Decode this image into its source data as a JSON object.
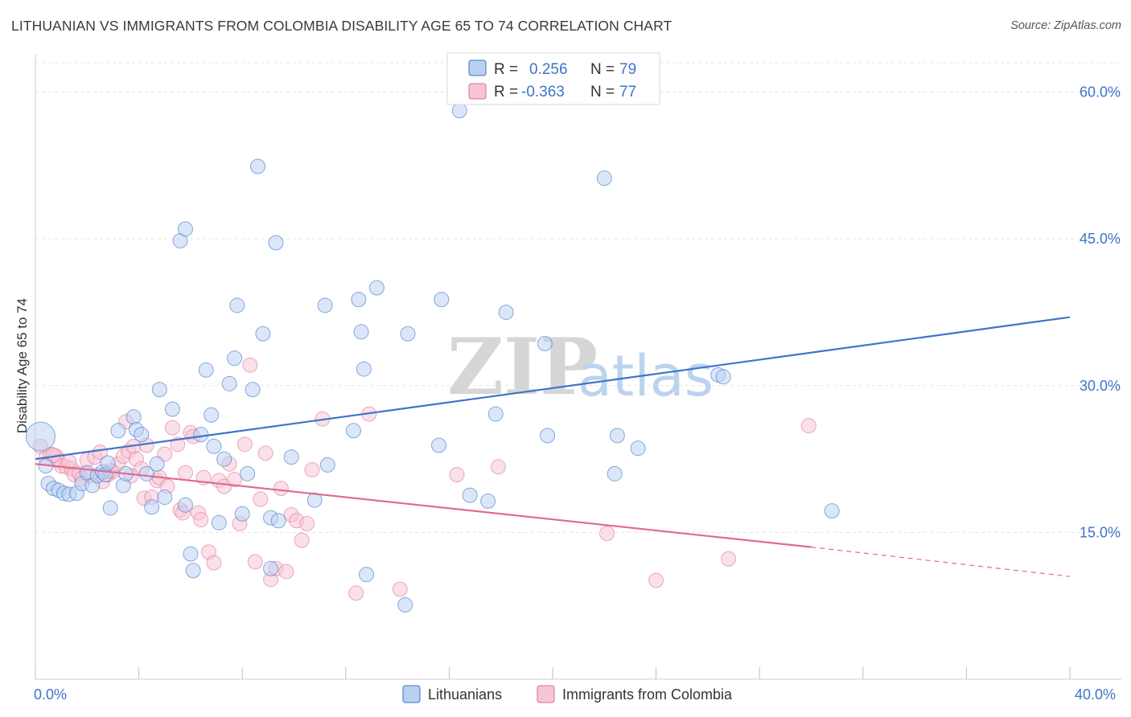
{
  "header": {
    "title": "LITHUANIAN VS IMMIGRANTS FROM COLOMBIA DISABILITY AGE 65 TO 74 CORRELATION CHART",
    "source": "Source: ZipAtlas.com"
  },
  "watermark": {
    "zip": "ZIP",
    "atlas": "atlas"
  },
  "chart_data": {
    "type": "scatter",
    "ylabel": "Disability Age 65 to 74",
    "xlim": [
      0,
      40
    ],
    "ylim": [
      0,
      63
    ],
    "x_tick_labels": [
      "0.0%",
      "40.0%"
    ],
    "y_ticks": [
      15,
      30,
      45,
      60
    ],
    "y_tick_labels": [
      "15.0%",
      "30.0%",
      "45.0%",
      "60.0%"
    ],
    "colors": {
      "lithuanians": "#3e74c9",
      "colombia": "#e0688f",
      "lith_fill": "#b8d0f2",
      "col_fill": "#f6c6d6"
    },
    "legend": {
      "r_label": "R =",
      "n_label": "N =",
      "entries": [
        {
          "r": "0.256",
          "n": "79"
        },
        {
          "r": "-0.363",
          "n": "77"
        }
      ]
    },
    "series": [
      {
        "name": "Lithuanians",
        "trend": {
          "x0": 0,
          "y0": 22.5,
          "x1": 40,
          "y1": 37.0
        },
        "points": [
          [
            0.2,
            24.8
          ],
          [
            0.4,
            21.8
          ],
          [
            0.5,
            20.0
          ],
          [
            0.7,
            19.5
          ],
          [
            0.9,
            19.3
          ],
          [
            1.1,
            19.0
          ],
          [
            1.3,
            18.9
          ],
          [
            1.6,
            19.0
          ],
          [
            1.8,
            20.0
          ],
          [
            2.0,
            21.1
          ],
          [
            2.2,
            19.8
          ],
          [
            2.4,
            20.8
          ],
          [
            2.6,
            21.2
          ],
          [
            2.7,
            20.9
          ],
          [
            2.8,
            22.1
          ],
          [
            2.9,
            17.5
          ],
          [
            3.2,
            25.4
          ],
          [
            3.4,
            19.8
          ],
          [
            3.5,
            21.0
          ],
          [
            3.8,
            26.8
          ],
          [
            3.9,
            25.5
          ],
          [
            4.1,
            25.0
          ],
          [
            4.3,
            21.0
          ],
          [
            4.5,
            17.6
          ],
          [
            4.7,
            22.0
          ],
          [
            4.8,
            29.6
          ],
          [
            5.0,
            18.6
          ],
          [
            5.3,
            27.6
          ],
          [
            5.6,
            44.8
          ],
          [
            5.8,
            46.0
          ],
          [
            5.8,
            17.8
          ],
          [
            6.0,
            12.8
          ],
          [
            6.1,
            11.1
          ],
          [
            6.4,
            25.0
          ],
          [
            6.6,
            31.6
          ],
          [
            6.8,
            27.0
          ],
          [
            6.9,
            23.8
          ],
          [
            7.1,
            16.0
          ],
          [
            7.3,
            22.5
          ],
          [
            7.5,
            30.2
          ],
          [
            7.7,
            32.8
          ],
          [
            7.8,
            38.2
          ],
          [
            8.0,
            16.9
          ],
          [
            8.2,
            21.0
          ],
          [
            8.4,
            29.6
          ],
          [
            8.6,
            52.4
          ],
          [
            8.8,
            35.3
          ],
          [
            9.1,
            16.5
          ],
          [
            9.3,
            44.6
          ],
          [
            9.4,
            16.2
          ],
          [
            9.9,
            22.7
          ],
          [
            9.1,
            11.3
          ],
          [
            10.8,
            18.3
          ],
          [
            11.2,
            38.2
          ],
          [
            11.3,
            21.9
          ],
          [
            12.3,
            25.4
          ],
          [
            12.6,
            35.5
          ],
          [
            12.5,
            38.8
          ],
          [
            12.7,
            31.7
          ],
          [
            13.2,
            40.0
          ],
          [
            12.8,
            10.7
          ],
          [
            14.3,
            7.6
          ],
          [
            14.4,
            35.3
          ],
          [
            15.6,
            23.9
          ],
          [
            15.7,
            38.8
          ],
          [
            16.4,
            58.1
          ],
          [
            16.8,
            18.8
          ],
          [
            17.5,
            18.2
          ],
          [
            17.8,
            27.1
          ],
          [
            18.2,
            37.5
          ],
          [
            19.7,
            34.3
          ],
          [
            19.8,
            24.9
          ],
          [
            22.0,
            51.2
          ],
          [
            22.4,
            21.0
          ],
          [
            22.5,
            24.9
          ],
          [
            23.3,
            23.6
          ],
          [
            26.4,
            31.1
          ],
          [
            26.6,
            30.9
          ],
          [
            30.8,
            17.2
          ]
        ]
      },
      {
        "name": "Immigrants from Colombia",
        "trend": {
          "x0": 0,
          "y0": 22.0,
          "x1": 30.0,
          "y1": 13.5,
          "dash_to_x": 40,
          "dash_to_y": 10.5
        },
        "points": [
          [
            0.2,
            23.8
          ],
          [
            0.4,
            22.6
          ],
          [
            0.6,
            23.0
          ],
          [
            0.8,
            22.8
          ],
          [
            0.9,
            22.3
          ],
          [
            1.0,
            21.8
          ],
          [
            1.2,
            21.7
          ],
          [
            1.4,
            21.5
          ],
          [
            1.5,
            20.9
          ],
          [
            1.7,
            21.0
          ],
          [
            1.8,
            20.5
          ],
          [
            2.0,
            22.4
          ],
          [
            2.1,
            20.8
          ],
          [
            2.3,
            22.7
          ],
          [
            2.5,
            23.2
          ],
          [
            2.6,
            20.2
          ],
          [
            2.8,
            20.9
          ],
          [
            3.0,
            21.2
          ],
          [
            3.2,
            22.0
          ],
          [
            3.4,
            22.8
          ],
          [
            3.5,
            26.3
          ],
          [
            3.6,
            23.3
          ],
          [
            3.8,
            23.8
          ],
          [
            3.9,
            22.5
          ],
          [
            4.1,
            21.5
          ],
          [
            4.2,
            18.5
          ],
          [
            4.3,
            23.9
          ],
          [
            4.5,
            18.6
          ],
          [
            4.7,
            20.3
          ],
          [
            4.8,
            20.6
          ],
          [
            5.0,
            23.0
          ],
          [
            5.1,
            19.7
          ],
          [
            5.3,
            25.7
          ],
          [
            5.5,
            24.0
          ],
          [
            5.6,
            17.3
          ],
          [
            5.7,
            17.0
          ],
          [
            5.8,
            21.1
          ],
          [
            6.0,
            25.2
          ],
          [
            6.1,
            24.8
          ],
          [
            6.3,
            17.0
          ],
          [
            6.4,
            16.3
          ],
          [
            6.5,
            20.6
          ],
          [
            6.7,
            13.0
          ],
          [
            6.9,
            11.9
          ],
          [
            7.1,
            20.3
          ],
          [
            7.3,
            19.7
          ],
          [
            7.5,
            22.0
          ],
          [
            7.7,
            20.4
          ],
          [
            7.9,
            15.9
          ],
          [
            8.1,
            24.0
          ],
          [
            8.3,
            32.1
          ],
          [
            8.5,
            12.0
          ],
          [
            8.7,
            18.4
          ],
          [
            8.9,
            23.1
          ],
          [
            9.1,
            10.2
          ],
          [
            9.3,
            11.3
          ],
          [
            9.5,
            19.5
          ],
          [
            9.7,
            11.0
          ],
          [
            9.9,
            16.8
          ],
          [
            10.1,
            16.2
          ],
          [
            10.3,
            14.2
          ],
          [
            10.5,
            15.9
          ],
          [
            10.7,
            21.4
          ],
          [
            11.1,
            26.6
          ],
          [
            12.4,
            8.8
          ],
          [
            12.9,
            27.1
          ],
          [
            14.1,
            9.2
          ],
          [
            16.3,
            20.9
          ],
          [
            17.9,
            21.7
          ],
          [
            22.1,
            14.9
          ],
          [
            24.0,
            10.1
          ],
          [
            26.8,
            12.3
          ],
          [
            29.9,
            25.9
          ],
          [
            1.3,
            22.2
          ],
          [
            0.7,
            22.9
          ],
          [
            2.9,
            21.3
          ],
          [
            3.7,
            20.8
          ]
        ]
      }
    ]
  },
  "bottom_legend": {
    "items": [
      {
        "label": "Lithuanians"
      },
      {
        "label": "Immigrants from Colombia"
      }
    ]
  }
}
